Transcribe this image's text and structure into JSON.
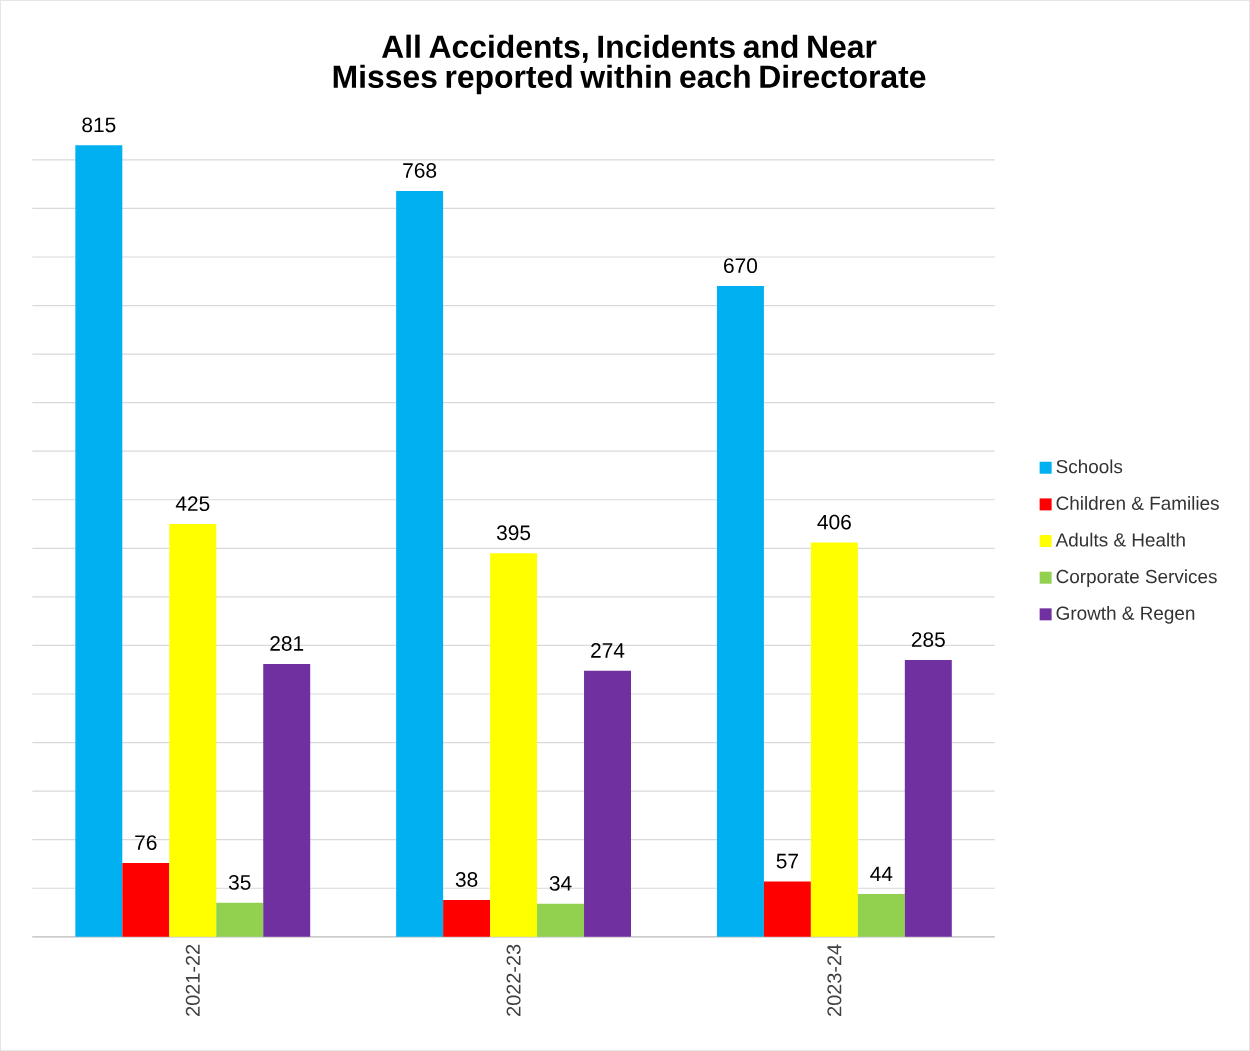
{
  "chart_data": {
    "type": "bar",
    "title": "All Accidents, Incidents and Near Misses reported within each Directorate",
    "categories": [
      "2021-22",
      "2022-23",
      "2023-24"
    ],
    "series": [
      {
        "name": "Schools",
        "color": "#00b0f0",
        "values": [
          815,
          768,
          670
        ]
      },
      {
        "name": "Children & Families",
        "color": "#ff0000",
        "values": [
          76,
          38,
          57
        ]
      },
      {
        "name": "Adults & Health",
        "color": "#ffff00",
        "values": [
          425,
          395,
          406
        ]
      },
      {
        "name": "Corporate Services",
        "color": "#92d050",
        "values": [
          35,
          34,
          44
        ]
      },
      {
        "name": "Growth & Regen",
        "color": "#7030a0",
        "values": [
          281,
          274,
          285
        ]
      }
    ],
    "tick_labels": "x",
    "grid": "y",
    "legend": "right",
    "data_labels": true
  }
}
